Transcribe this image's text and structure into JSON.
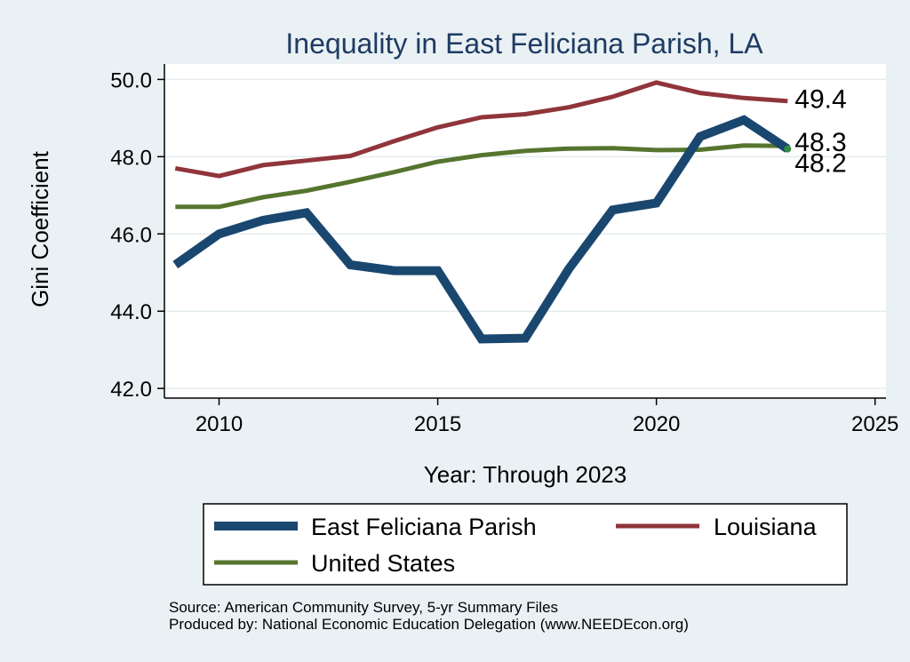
{
  "colors": {
    "background": "#eaf1f4",
    "plot_bg": "#ffffff",
    "grid": "#e4ecef",
    "title": "#1f3b63",
    "parish": "#1a476f",
    "louisiana": "#90353b",
    "us": "#55752f",
    "marker": "#2e8b3a"
  },
  "chart_data": {
    "type": "line",
    "title": "Inequality in East Feliciana Parish, LA",
    "xlabel": "Year: Through 2023",
    "ylabel": "Gini Coefficient",
    "xlim": [
      2008.75,
      2025.25
    ],
    "ylim": [
      41.75,
      50.4
    ],
    "xticks": [
      2010,
      2015,
      2020,
      2025
    ],
    "yticks": [
      42.0,
      44.0,
      46.0,
      48.0,
      50.0
    ],
    "ytick_labels": [
      "42.0",
      "44.0",
      "46.0",
      "48.0",
      "50.0"
    ],
    "x": [
      2009,
      2010,
      2011,
      2012,
      2013,
      2014,
      2015,
      2016,
      2017,
      2018,
      2019,
      2020,
      2021,
      2022,
      2023
    ],
    "series": [
      {
        "name": "East Feliciana Parish",
        "color_key": "parish",
        "width": 10,
        "values": [
          45.2,
          46.0,
          46.35,
          46.55,
          45.2,
          45.05,
          45.05,
          43.28,
          43.3,
          45.1,
          46.62,
          46.8,
          48.52,
          48.95,
          48.2
        ],
        "end_label": "48.2"
      },
      {
        "name": "Louisiana",
        "color_key": "louisiana",
        "width": 5,
        "values": [
          47.7,
          47.5,
          47.78,
          47.9,
          48.02,
          48.4,
          48.76,
          49.02,
          49.1,
          49.28,
          49.55,
          49.92,
          49.65,
          49.52,
          49.44
        ],
        "end_label": "49.4"
      },
      {
        "name": "United States",
        "color_key": "us",
        "width": 5,
        "values": [
          46.7,
          46.7,
          46.95,
          47.12,
          47.35,
          47.6,
          47.87,
          48.04,
          48.15,
          48.21,
          48.22,
          48.17,
          48.18,
          48.29,
          48.28
        ],
        "end_label": "48.3"
      }
    ],
    "legend": {
      "placement": "bottom",
      "entries": [
        "East Feliciana Parish",
        "Louisiana",
        "United States"
      ]
    }
  },
  "notes": {
    "source": "Source: American Community Survey, 5-yr Summary Files",
    "produced_by": "Produced by: National Economic Education Delegation (www.NEEDEcon.org)"
  }
}
